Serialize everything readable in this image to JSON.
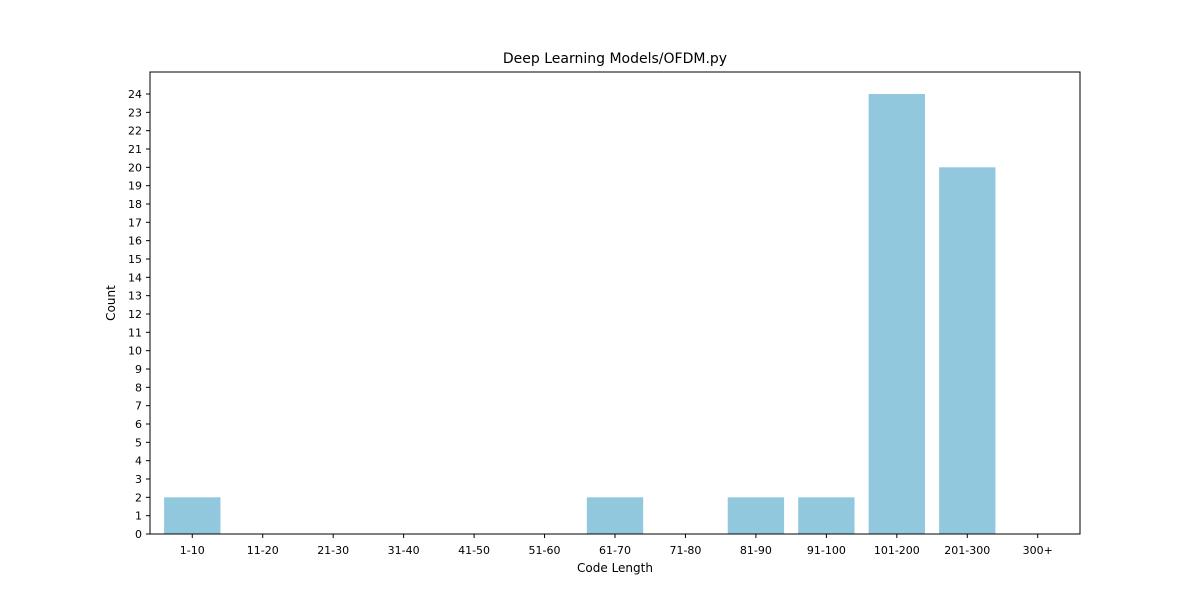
{
  "chart_data": {
    "type": "bar",
    "title": "Deep Learning Models/OFDM.py",
    "xlabel": "Code Length",
    "ylabel": "Count",
    "categories": [
      "1-10",
      "11-20",
      "21-30",
      "31-40",
      "41-50",
      "51-60",
      "61-70",
      "71-80",
      "81-90",
      "91-100",
      "101-200",
      "201-300",
      "300+"
    ],
    "values": [
      2,
      0,
      0,
      0,
      0,
      0,
      2,
      0,
      2,
      2,
      24,
      20,
      0
    ],
    "ylim": [
      0,
      25.2
    ],
    "yticks": [
      0,
      1,
      2,
      3,
      4,
      5,
      6,
      7,
      8,
      9,
      10,
      11,
      12,
      13,
      14,
      15,
      16,
      17,
      18,
      19,
      20,
      21,
      22,
      23,
      24
    ],
    "bar_color": "#92c8dd",
    "grid": false,
    "legend": "none"
  }
}
